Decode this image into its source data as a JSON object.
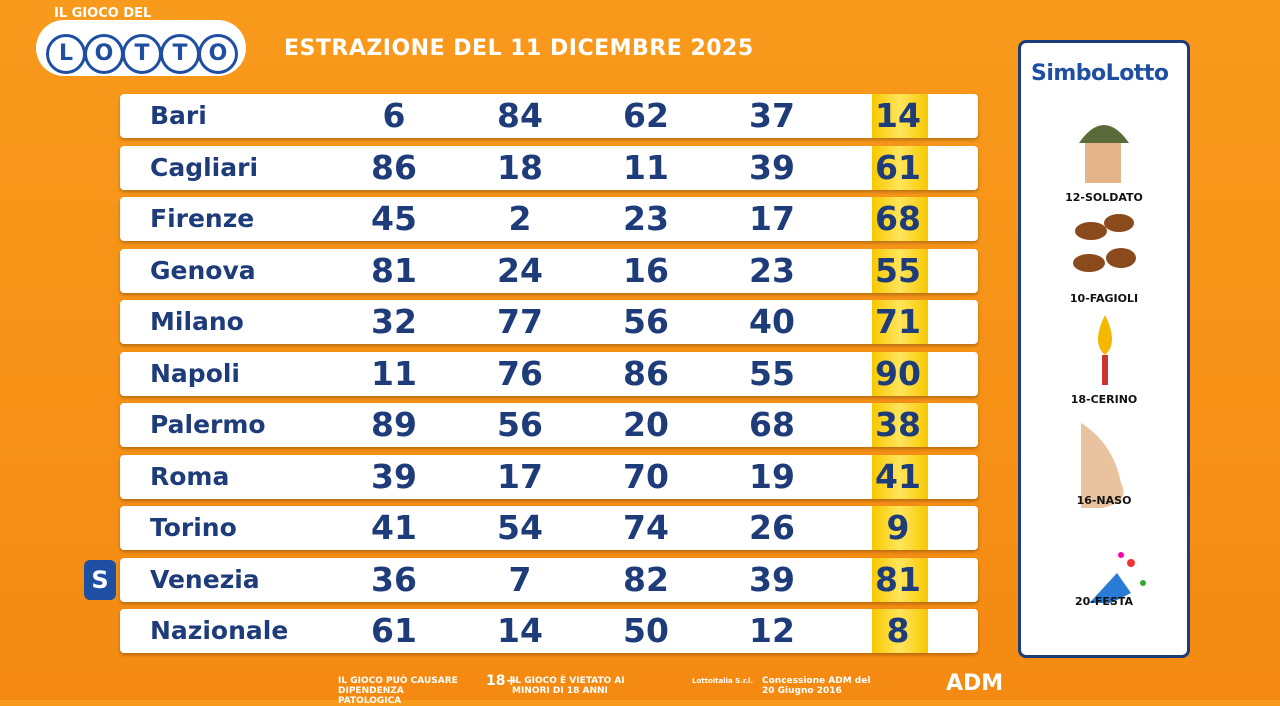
{
  "logo": {
    "top": "IL GIOCO DEL",
    "letters": [
      "L",
      "O",
      "T",
      "T",
      "O"
    ]
  },
  "title": "ESTRAZIONE DEL 11 DICEMBRE 2025",
  "table": {
    "rows": [
      [
        "Bari",
        6,
        84,
        62,
        37,
        14
      ],
      [
        "Cagliari",
        86,
        18,
        11,
        39,
        61
      ],
      [
        "Firenze",
        45,
        2,
        23,
        17,
        68
      ],
      [
        "Genova",
        81,
        24,
        16,
        23,
        55
      ],
      [
        "Milano",
        32,
        77,
        56,
        40,
        71
      ],
      [
        "Napoli",
        11,
        76,
        86,
        55,
        90
      ],
      [
        "Palermo",
        89,
        56,
        20,
        68,
        38
      ],
      [
        "Roma",
        39,
        17,
        70,
        19,
        41
      ],
      [
        "Torino",
        41,
        54,
        74,
        26,
        9
      ],
      [
        "Venezia",
        36,
        7,
        82,
        39,
        81
      ],
      [
        "Nazionale",
        61,
        14,
        50,
        12,
        8
      ]
    ],
    "badge": "S"
  },
  "simbolotto": {
    "title": "SimboLotto",
    "items": [
      "12-SOLDATO",
      "10-FAGIOLI",
      "18-CERINO",
      "16-NASO",
      "20-FESTA"
    ]
  },
  "footer": [
    "IL GIOCO PUÒ CAUSARE DIPENDENZA PATOLOGICA",
    "18+",
    "IL GIOCO È VIETATO AI MINORI DI 18 ANNI",
    "Lottoitalia S.r.l.",
    "Concessione ADM del 20 Giugno 2016",
    "ADM"
  ]
}
